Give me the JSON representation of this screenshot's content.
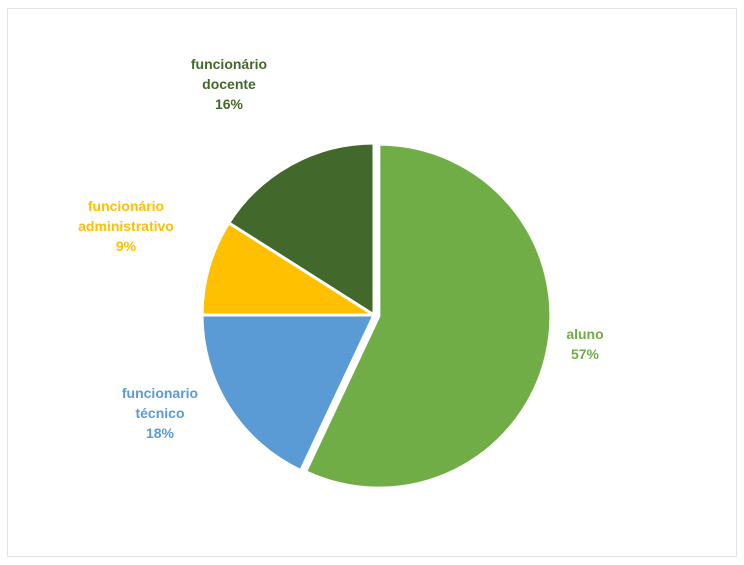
{
  "chart_data": {
    "type": "pie",
    "title": "",
    "slices": [
      {
        "name": "aluno",
        "value": 57,
        "percent_label": "57%",
        "color": "#70ad47"
      },
      {
        "name": "funcionario técnico",
        "value": 18,
        "percent_label": "18%",
        "color": "#5b9bd5"
      },
      {
        "name": "funcionário administrativo",
        "value": 9,
        "percent_label": "9%",
        "color": "#ffc000"
      },
      {
        "name": "funcionário docente",
        "value": 16,
        "percent_label": "16%",
        "color": "#43682b"
      }
    ],
    "label_lines": [
      [
        "aluno",
        "57%"
      ],
      [
        "funcionario",
        "técnico",
        "18%"
      ],
      [
        "funcionário",
        "administrativo",
        "9%"
      ],
      [
        "funcionário",
        "docente",
        "16%"
      ]
    ],
    "legend": "none",
    "exploded_slice": "aluno"
  }
}
